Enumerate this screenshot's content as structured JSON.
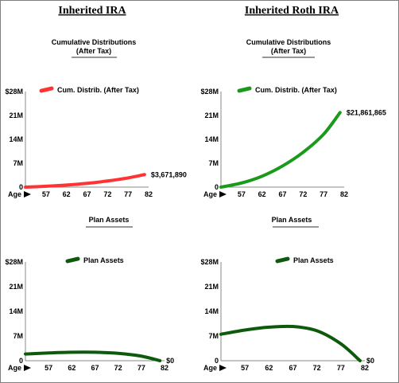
{
  "columns": [
    {
      "heading": "Inherited IRA"
    },
    {
      "heading": "Inherited Roth IRA"
    }
  ],
  "colors": {
    "red": "#ff3333",
    "green": "#1a9a1a",
    "dark_green": "#0d5a0d"
  },
  "chart_data": [
    {
      "type": "line",
      "title": "Cumulative Distributions",
      "subtitle": "(After Tax)",
      "xlabel": "Age",
      "x_ticks": [
        "57",
        "62",
        "67",
        "72",
        "77",
        "82"
      ],
      "y_ticks": [
        "0",
        "7M",
        "14M",
        "21M",
        "$28M"
      ],
      "xlim": [
        52,
        82
      ],
      "ylim": [
        0,
        28000000
      ],
      "legend_position": "top",
      "series": [
        {
          "name": "Cum. Distrib. (After Tax)",
          "color": "#ff3333",
          "x": [
            52,
            57,
            62,
            67,
            72,
            77,
            81
          ],
          "values": [
            0,
            250000,
            600000,
            1100000,
            1800000,
            2700000,
            3671890
          ]
        }
      ],
      "end_label": "$3,671,890"
    },
    {
      "type": "line",
      "title": "Cumulative Distributions",
      "subtitle": "(After Tax)",
      "xlabel": "Age",
      "x_ticks": [
        "57",
        "62",
        "67",
        "72",
        "77",
        "82"
      ],
      "y_ticks": [
        "0",
        "7M",
        "14M",
        "21M",
        "$28M"
      ],
      "xlim": [
        52,
        82
      ],
      "ylim": [
        0,
        28000000
      ],
      "legend_position": "top",
      "series": [
        {
          "name": "Cum. Distrib. (After Tax)",
          "color": "#1a9a1a",
          "x": [
            52,
            57,
            62,
            67,
            72,
            77,
            81
          ],
          "values": [
            0,
            1200000,
            3200000,
            6200000,
            10200000,
            15500000,
            21861865
          ]
        }
      ],
      "end_label": "$21,861,865"
    },
    {
      "type": "line",
      "title": "Plan Assets",
      "subtitle": "",
      "xlabel": "Age",
      "x_ticks": [
        "57",
        "62",
        "67",
        "72",
        "77",
        "82"
      ],
      "y_ticks": [
        "0",
        "7M",
        "14M",
        "21M",
        "$28M"
      ],
      "xlim": [
        52,
        82
      ],
      "ylim": [
        0,
        28000000
      ],
      "legend_position": "top",
      "series": [
        {
          "name": "Plan Assets",
          "color": "#0d5a0d",
          "x": [
            52,
            57,
            62,
            67,
            72,
            77,
            81
          ],
          "values": [
            1900000,
            2200000,
            2400000,
            2400000,
            2100000,
            1300000,
            0
          ]
        }
      ],
      "end_label": "$0"
    },
    {
      "type": "line",
      "title": "Plan Assets",
      "subtitle": "",
      "xlabel": "Age",
      "x_ticks": [
        "57",
        "62",
        "67",
        "72",
        "77",
        "82"
      ],
      "y_ticks": [
        "0",
        "7M",
        "14M",
        "21M",
        "$28M"
      ],
      "xlim": [
        52,
        82
      ],
      "ylim": [
        0,
        28000000
      ],
      "legend_position": "top",
      "series": [
        {
          "name": "Plan Assets",
          "color": "#0d5a0d",
          "x": [
            52,
            57,
            62,
            67,
            72,
            77,
            81
          ],
          "values": [
            7500000,
            8700000,
            9500000,
            9700000,
            8500000,
            4800000,
            0
          ]
        }
      ],
      "end_label": "$0"
    }
  ]
}
